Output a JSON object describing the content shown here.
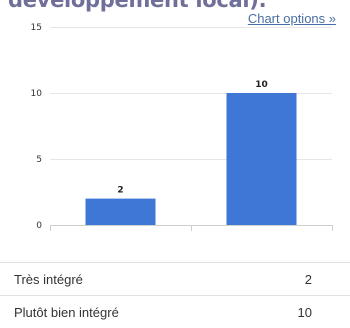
{
  "heading": "développement local).",
  "chart_options_link": "Chart options »",
  "chart_data": {
    "type": "bar",
    "title": "",
    "categories": [
      "Très intégré",
      "Plutôt bien intégré"
    ],
    "values": [
      2,
      10
    ],
    "ylim": [
      0,
      15
    ],
    "yticks": [
      0,
      5,
      10,
      15
    ],
    "xlabel": "",
    "ylabel": "",
    "grid": true,
    "bar_color": "#3f77d6",
    "show_category_tick_labels": false
  },
  "table": {
    "rows": [
      {
        "label": "Très intégré",
        "value": "2"
      },
      {
        "label": "Plutôt bien intégré",
        "value": "10"
      }
    ]
  }
}
